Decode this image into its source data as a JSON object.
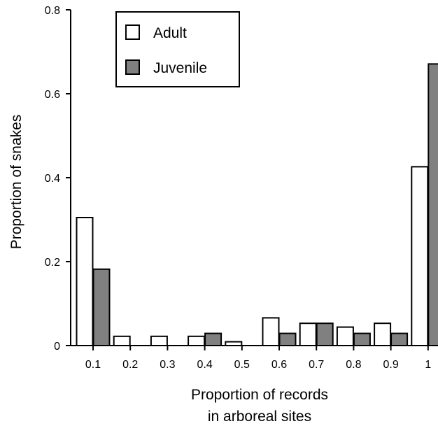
{
  "chart_data": {
    "type": "bar",
    "title": "",
    "xlabel": [
      "Proportion of records",
      "in arboreal sites"
    ],
    "ylabel": "Proportion of snakes",
    "categories": [
      "0.1",
      "0.2",
      "0.3",
      "0.4",
      "0.5",
      "0.6",
      "0.7",
      "0.8",
      "0.9",
      "1"
    ],
    "series": [
      {
        "name": "Adult",
        "color": "#ffffff",
        "values": [
          0.305,
          0.022,
          0.022,
          0.022,
          0.009,
          0.066,
          0.053,
          0.044,
          0.053,
          0.426
        ]
      },
      {
        "name": "Juvenile",
        "color": "#808080",
        "values": [
          0.182,
          0,
          0,
          0.029,
          0,
          0.029,
          0.053,
          0.029,
          0.029,
          0.671
        ]
      }
    ],
    "ylim": [
      0,
      0.8
    ],
    "yticks": [
      "0",
      "0.2",
      "0.4",
      "0.6",
      "0.8"
    ],
    "grid": false,
    "legend_position": "top-left"
  }
}
